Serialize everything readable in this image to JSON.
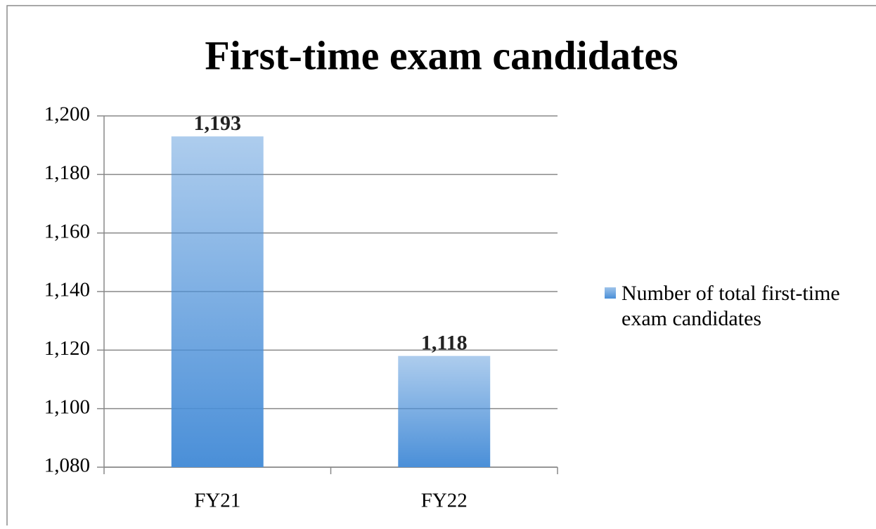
{
  "chart_data": {
    "type": "bar",
    "title": "First-time exam candidates",
    "categories": [
      "FY21",
      "FY22"
    ],
    "series": [
      {
        "name": "Number of total first-time exam candidates",
        "color": "#4a8fd8",
        "values": [
          1193,
          1118
        ],
        "value_labels": [
          "1,193",
          "1,118"
        ]
      }
    ],
    "ylim": [
      1080,
      1200
    ],
    "yticks": [
      {
        "value": 1080,
        "label": "1,080"
      },
      {
        "value": 1100,
        "label": "1,100"
      },
      {
        "value": 1120,
        "label": "1,120"
      },
      {
        "value": 1140,
        "label": "1,140"
      },
      {
        "value": 1160,
        "label": "1,160"
      },
      {
        "value": 1180,
        "label": "1,180"
      },
      {
        "value": 1200,
        "label": "1,200"
      }
    ],
    "grid": true,
    "legend": "right"
  }
}
